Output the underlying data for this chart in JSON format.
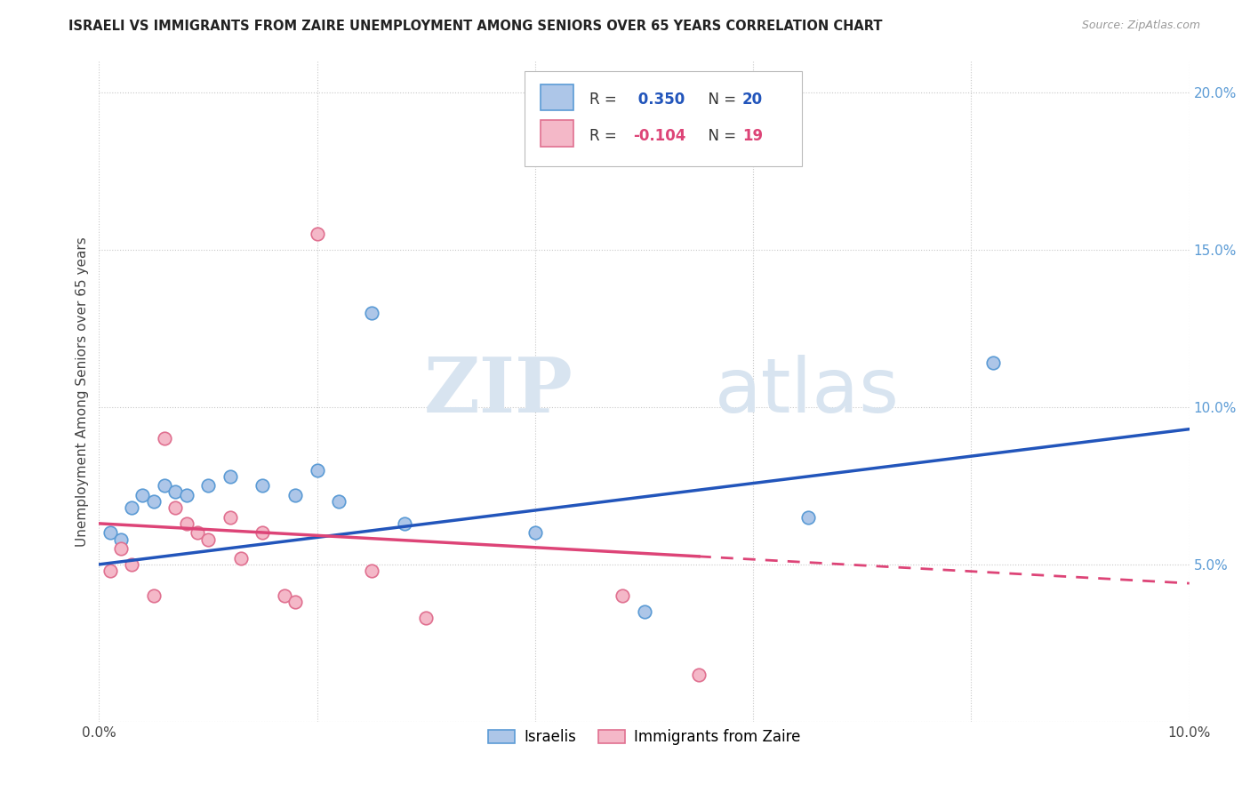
{
  "title": "ISRAELI VS IMMIGRANTS FROM ZAIRE UNEMPLOYMENT AMONG SENIORS OVER 65 YEARS CORRELATION CHART",
  "source": "Source: ZipAtlas.com",
  "ylabel": "Unemployment Among Seniors over 65 years",
  "xlim": [
    0.0,
    0.1
  ],
  "ylim": [
    0.0,
    0.21
  ],
  "xticks": [
    0.0,
    0.02,
    0.04,
    0.06,
    0.08,
    0.1
  ],
  "yticks": [
    0.0,
    0.05,
    0.1,
    0.15,
    0.2
  ],
  "xticklabels": [
    "0.0%",
    "",
    "",
    "",
    "",
    "10.0%"
  ],
  "yticklabels": [
    "",
    "5.0%",
    "10.0%",
    "15.0%",
    "20.0%"
  ],
  "israelis_x": [
    0.001,
    0.002,
    0.003,
    0.004,
    0.005,
    0.006,
    0.007,
    0.008,
    0.01,
    0.012,
    0.015,
    0.018,
    0.02,
    0.022,
    0.025,
    0.028,
    0.04,
    0.05,
    0.065,
    0.082
  ],
  "israelis_y": [
    0.06,
    0.058,
    0.068,
    0.072,
    0.07,
    0.075,
    0.073,
    0.072,
    0.075,
    0.078,
    0.075,
    0.072,
    0.08,
    0.07,
    0.13,
    0.063,
    0.06,
    0.035,
    0.065,
    0.114
  ],
  "zaire_x": [
    0.001,
    0.002,
    0.003,
    0.005,
    0.006,
    0.007,
    0.008,
    0.009,
    0.01,
    0.012,
    0.013,
    0.015,
    0.017,
    0.018,
    0.02,
    0.025,
    0.03,
    0.048,
    0.055
  ],
  "zaire_y": [
    0.048,
    0.055,
    0.05,
    0.04,
    0.09,
    0.068,
    0.063,
    0.06,
    0.058,
    0.065,
    0.052,
    0.06,
    0.04,
    0.038,
    0.155,
    0.048,
    0.033,
    0.04,
    0.015
  ],
  "israeli_color": "#adc6e8",
  "israeli_edge_color": "#5b9bd5",
  "zaire_color": "#f4b8c8",
  "zaire_edge_color": "#e07090",
  "trend_israeli_color": "#2255bb",
  "trend_zaire_color": "#dd4477",
  "R_israeli": 0.35,
  "N_israeli": 20,
  "R_zaire": -0.104,
  "N_zaire": 19,
  "marker_size": 110,
  "background_color": "#ffffff",
  "legend_label_israeli": "Israelis",
  "legend_label_zaire": "Immigrants from Zaire"
}
